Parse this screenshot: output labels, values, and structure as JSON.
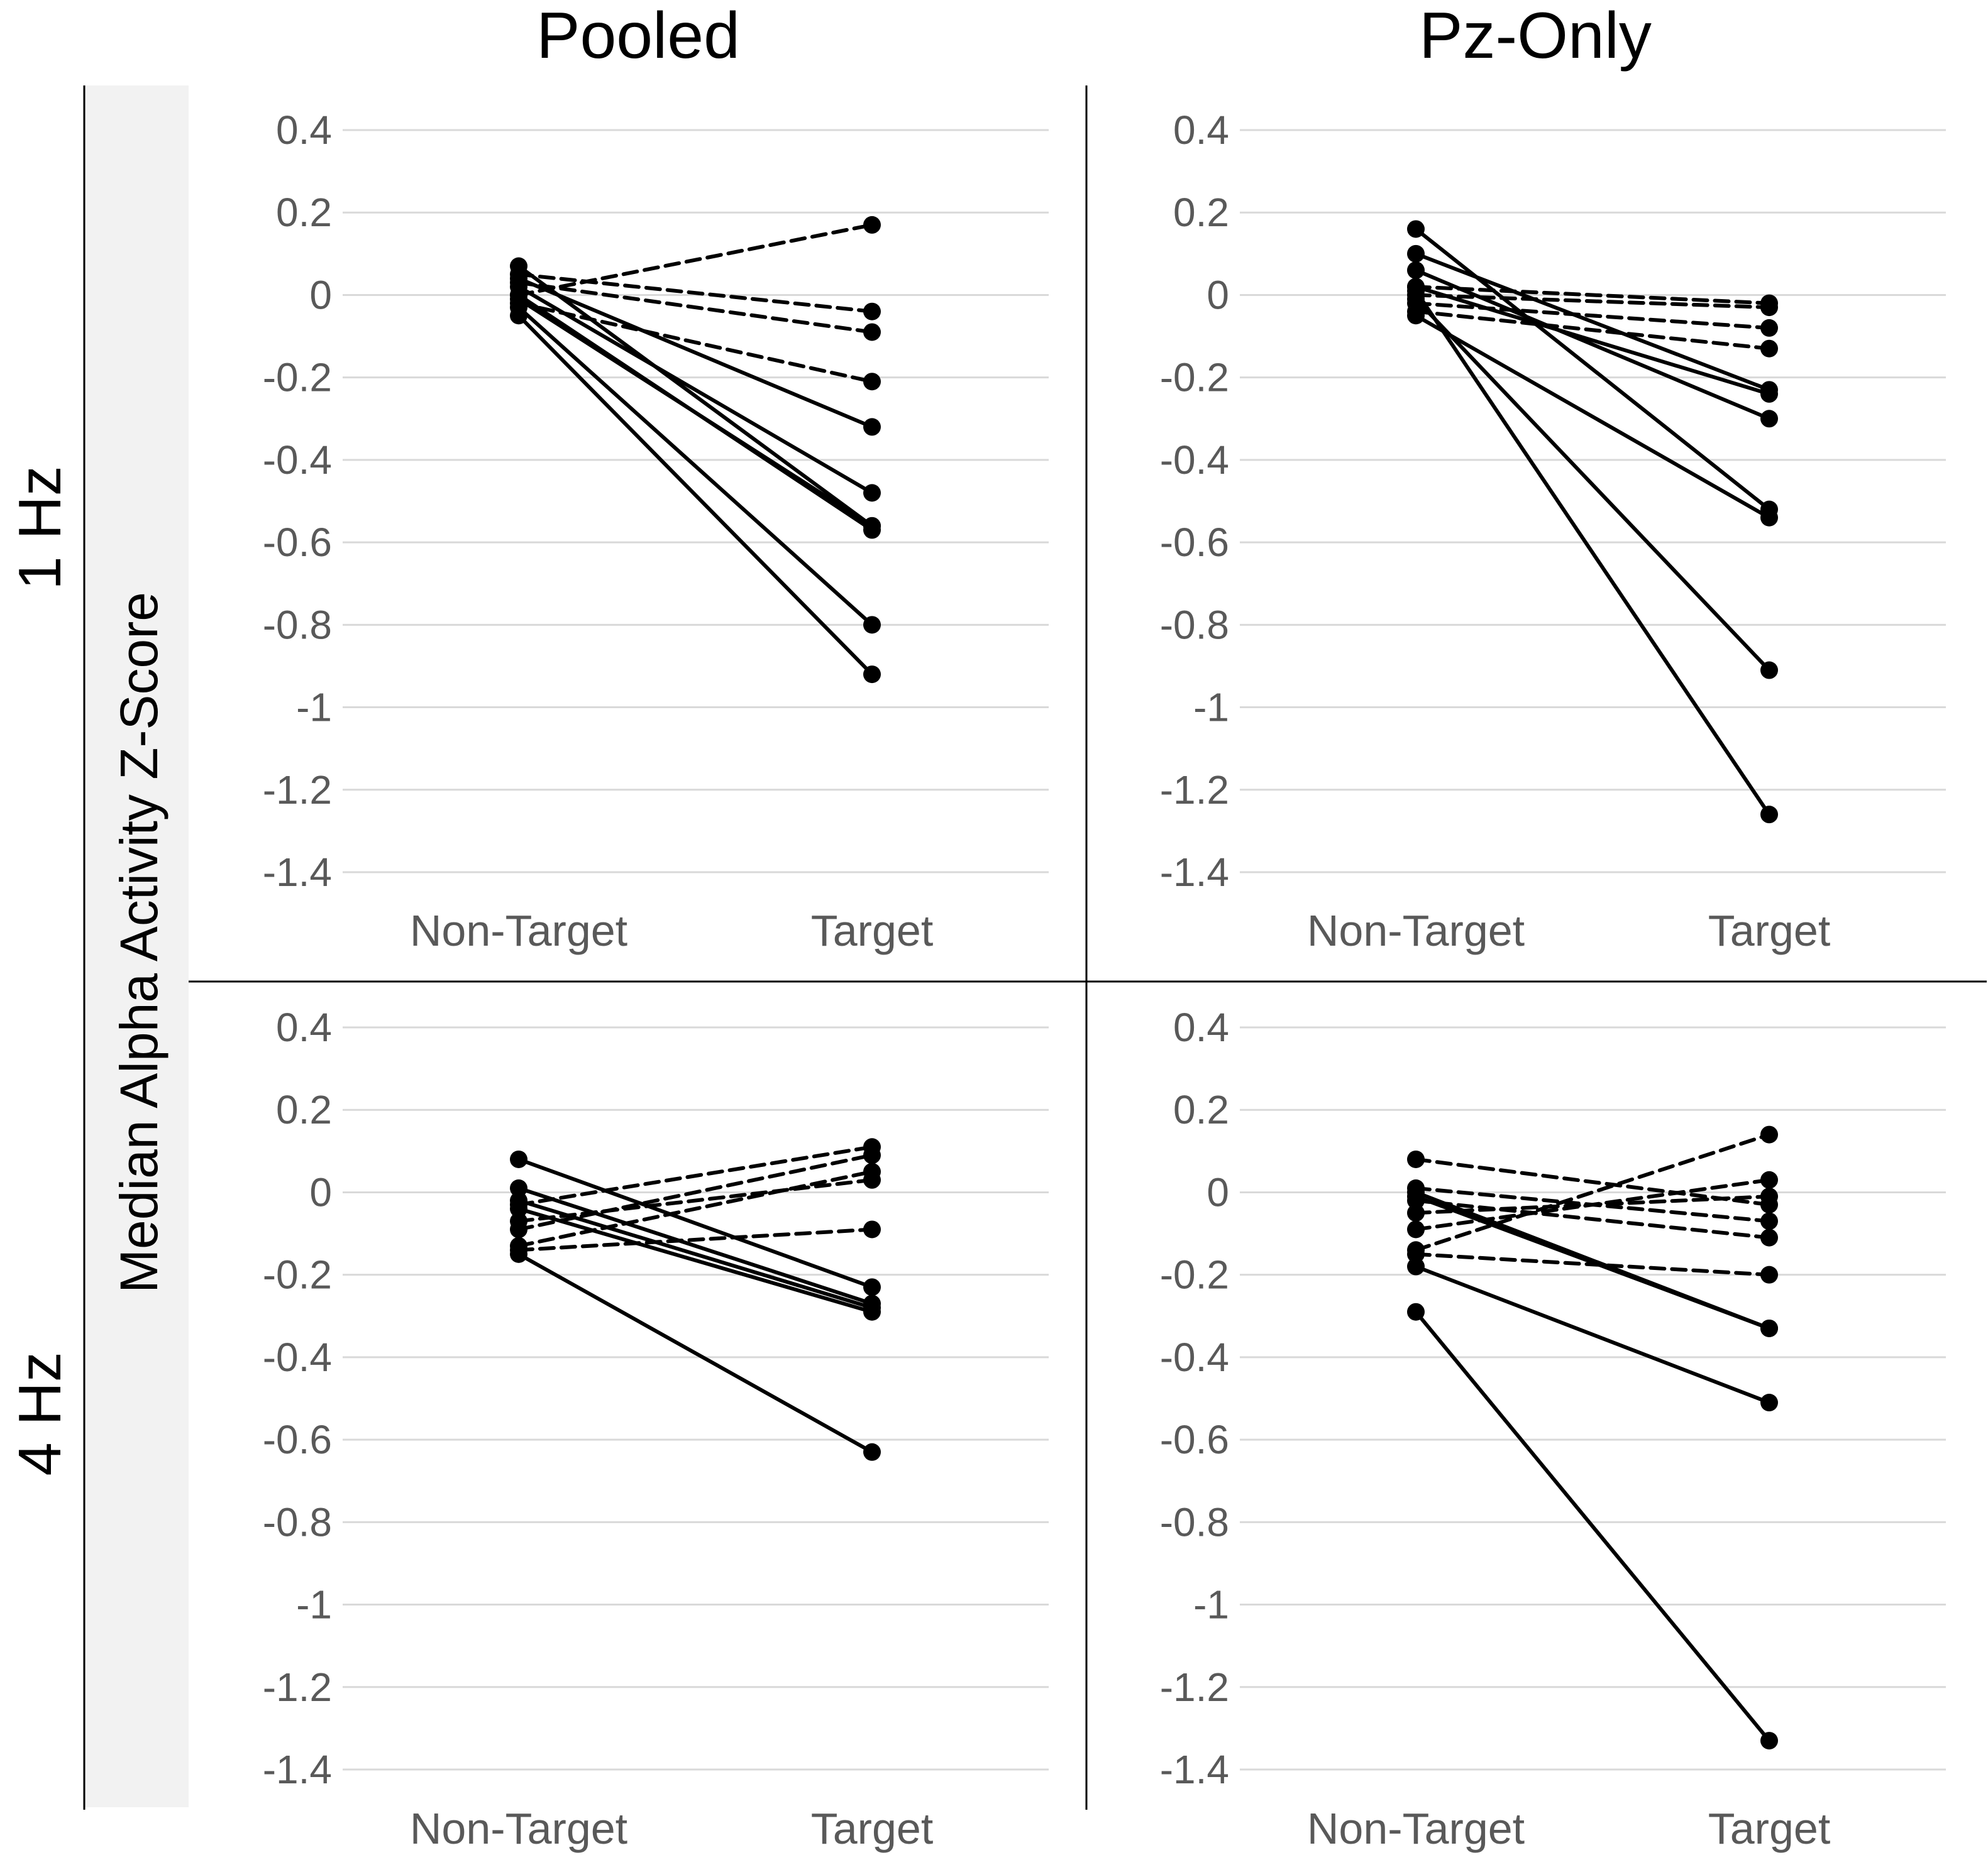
{
  "figure": {
    "y_axis_label": "Median Alpha Activity Z-Score",
    "column_titles": [
      "Pooled",
      "Pz-Only"
    ],
    "row_titles": [
      "1 Hz",
      "4 Hz"
    ],
    "colors": {
      "line": "#000000",
      "grid": "#d9d9d9",
      "tick_text": "#595959",
      "band": "#f2f2f2"
    }
  },
  "chart_data": [
    {
      "id": "pooled-1hz",
      "type": "line",
      "title": "Pooled",
      "row": "1 Hz",
      "categories": [
        "Non-Target",
        "Target"
      ],
      "ylim": [
        -1.4,
        0.4
      ],
      "yticks": [
        "0.4",
        "0.2",
        "0",
        "-0.2",
        "-0.4",
        "-0.6",
        "-0.8",
        "-1",
        "-1.2",
        "-1.4"
      ],
      "series": [
        {
          "name": "s1",
          "style": "dashed",
          "values": [
            0.0,
            0.17
          ]
        },
        {
          "name": "s2",
          "style": "dashed",
          "values": [
            0.05,
            -0.04
          ]
        },
        {
          "name": "s3",
          "style": "dashed",
          "values": [
            0.03,
            -0.09
          ]
        },
        {
          "name": "s4",
          "style": "dashed",
          "values": [
            -0.02,
            -0.21
          ]
        },
        {
          "name": "s5",
          "style": "solid",
          "values": [
            0.04,
            -0.32
          ]
        },
        {
          "name": "s6",
          "style": "solid",
          "values": [
            0.02,
            -0.48
          ]
        },
        {
          "name": "s7",
          "style": "solid",
          "values": [
            0.07,
            -0.56
          ]
        },
        {
          "name": "s8",
          "style": "solid",
          "values": [
            -0.01,
            -0.56
          ]
        },
        {
          "name": "s9",
          "style": "solid",
          "values": [
            0.0,
            -0.57
          ]
        },
        {
          "name": "s10",
          "style": "solid",
          "values": [
            -0.03,
            -0.8
          ]
        },
        {
          "name": "s11",
          "style": "solid",
          "values": [
            -0.05,
            -0.92
          ]
        }
      ]
    },
    {
      "id": "pz-1hz",
      "type": "line",
      "title": "Pz-Only",
      "row": "1 Hz",
      "categories": [
        "Non-Target",
        "Target"
      ],
      "ylim": [
        -1.4,
        0.4
      ],
      "yticks": [
        "0.4",
        "0.2",
        "0",
        "-0.2",
        "-0.4",
        "-0.6",
        "-0.8",
        "-1",
        "-1.2",
        "-1.4"
      ],
      "series": [
        {
          "name": "s1",
          "style": "dashed",
          "values": [
            0.02,
            -0.02
          ]
        },
        {
          "name": "s2",
          "style": "dashed",
          "values": [
            0.0,
            -0.03
          ]
        },
        {
          "name": "s3",
          "style": "dashed",
          "values": [
            -0.02,
            -0.08
          ]
        },
        {
          "name": "s4",
          "style": "dashed",
          "values": [
            -0.04,
            -0.13
          ]
        },
        {
          "name": "s5",
          "style": "solid",
          "values": [
            0.1,
            -0.23
          ]
        },
        {
          "name": "s6",
          "style": "solid",
          "values": [
            0.02,
            -0.24
          ]
        },
        {
          "name": "s7",
          "style": "solid",
          "values": [
            0.06,
            -0.3
          ]
        },
        {
          "name": "s8",
          "style": "solid",
          "values": [
            0.16,
            -0.52
          ]
        },
        {
          "name": "s9",
          "style": "solid",
          "values": [
            -0.05,
            -0.54
          ]
        },
        {
          "name": "s10",
          "style": "solid",
          "values": [
            -0.01,
            -0.91
          ]
        },
        {
          "name": "s11",
          "style": "solid",
          "values": [
            0.01,
            -1.26
          ]
        }
      ]
    },
    {
      "id": "pooled-4hz",
      "type": "line",
      "title": "Pooled",
      "row": "4 Hz",
      "categories": [
        "Non-Target",
        "Target"
      ],
      "ylim": [
        -1.4,
        0.4
      ],
      "yticks": [
        "0.4",
        "0.2",
        "0",
        "-0.2",
        "-0.4",
        "-0.6",
        "-0.8",
        "-1",
        "-1.2",
        "-1.4"
      ],
      "series": [
        {
          "name": "s1",
          "style": "dashed",
          "values": [
            -0.03,
            0.11
          ]
        },
        {
          "name": "s2",
          "style": "dashed",
          "values": [
            -0.09,
            0.09
          ]
        },
        {
          "name": "s3",
          "style": "dashed",
          "values": [
            -0.13,
            0.05
          ]
        },
        {
          "name": "s4",
          "style": "dashed",
          "values": [
            -0.07,
            0.03
          ]
        },
        {
          "name": "s5",
          "style": "dashed",
          "values": [
            -0.14,
            -0.09
          ]
        },
        {
          "name": "s6",
          "style": "solid",
          "values": [
            0.08,
            -0.23
          ]
        },
        {
          "name": "s7",
          "style": "solid",
          "values": [
            0.01,
            -0.27
          ]
        },
        {
          "name": "s8",
          "style": "solid",
          "values": [
            -0.02,
            -0.28
          ]
        },
        {
          "name": "s9",
          "style": "solid",
          "values": [
            -0.04,
            -0.29
          ]
        },
        {
          "name": "s10",
          "style": "solid",
          "values": [
            -0.15,
            -0.63
          ]
        }
      ]
    },
    {
      "id": "pz-4hz",
      "type": "line",
      "title": "Pz-Only",
      "row": "4 Hz",
      "categories": [
        "Non-Target",
        "Target"
      ],
      "ylim": [
        -1.4,
        0.4
      ],
      "yticks": [
        "0.4",
        "0.2",
        "0",
        "-0.2",
        "-0.4",
        "-0.6",
        "-0.8",
        "-1",
        "-1.2",
        "-1.4"
      ],
      "series": [
        {
          "name": "s1",
          "style": "dashed",
          "values": [
            -0.14,
            0.14
          ]
        },
        {
          "name": "s2",
          "style": "dashed",
          "values": [
            -0.09,
            0.03
          ]
        },
        {
          "name": "s3",
          "style": "dashed",
          "values": [
            -0.05,
            -0.01
          ]
        },
        {
          "name": "s4",
          "style": "dashed",
          "values": [
            0.08,
            -0.03
          ]
        },
        {
          "name": "s5",
          "style": "dashed",
          "values": [
            0.01,
            -0.07
          ]
        },
        {
          "name": "s6",
          "style": "dashed",
          "values": [
            -0.02,
            -0.11
          ]
        },
        {
          "name": "s7",
          "style": "dashed",
          "values": [
            -0.15,
            -0.2
          ]
        },
        {
          "name": "s8",
          "style": "solid",
          "values": [
            0.0,
            -0.33
          ]
        },
        {
          "name": "s9",
          "style": "solid",
          "values": [
            -0.01,
            -0.33
          ]
        },
        {
          "name": "s10",
          "style": "solid",
          "values": [
            -0.18,
            -0.51
          ]
        },
        {
          "name": "s11",
          "style": "solid",
          "values": [
            -0.29,
            -1.33
          ]
        }
      ]
    }
  ]
}
